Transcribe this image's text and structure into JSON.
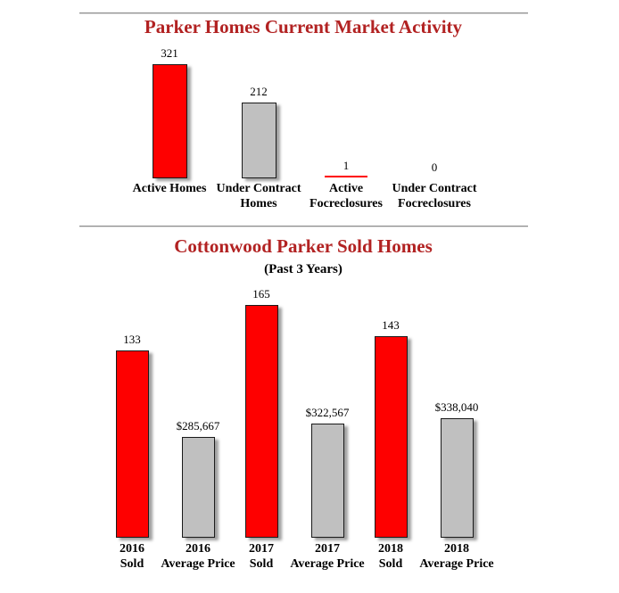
{
  "theme": {
    "background": "#ffffff",
    "title_color": "#b22222",
    "bar_red": "#fe0000",
    "bar_gray": "#c0c0c0",
    "bar_border": "#1a1a1a",
    "rule_color": "#8c8c8c",
    "text_color": "#000000"
  },
  "chart1": {
    "title": "Parker Homes Current Market Activity",
    "bars": [
      {
        "category": "Active Homes",
        "series": "count",
        "value": 321,
        "display": "321",
        "color": "red"
      },
      {
        "category": "Under Contract\nHomes",
        "series": "count",
        "value": 212,
        "display": "212",
        "color": "gray"
      },
      {
        "category": "Active\nFocreclosures",
        "series": "count",
        "value": 1,
        "display": "1",
        "color": "red"
      },
      {
        "category": "Under Contract\nFocreclosures",
        "series": "count",
        "value": 0,
        "display": "0",
        "color": "gray"
      }
    ]
  },
  "chart2": {
    "title": "Cottonwood Parker Sold Homes",
    "subtitle": "(Past 3 Years)",
    "bars": [
      {
        "category": "2016\nSold",
        "series": "count",
        "value": 133,
        "display": "133",
        "color": "red"
      },
      {
        "category": "2016\nAverage Price",
        "series": "price",
        "value": 285667,
        "display": "$285,667",
        "color": "gray"
      },
      {
        "category": "2017\nSold",
        "series": "count",
        "value": 165,
        "display": "165",
        "color": "red"
      },
      {
        "category": "2017\nAverage Price",
        "series": "price",
        "value": 322567,
        "display": "$322,567",
        "color": "gray"
      },
      {
        "category": "2018\nSold",
        "series": "count",
        "value": 143,
        "display": "143",
        "color": "red"
      },
      {
        "category": "2018\nAverage Price",
        "series": "price",
        "value": 338040,
        "display": "$338,040",
        "color": "gray"
      }
    ]
  },
  "chart_data": [
    {
      "type": "bar",
      "title": "Parker Homes Current Market Activity",
      "categories": [
        "Active Homes",
        "Under Contract Homes",
        "Active Focreclosures",
        "Under Contract Focreclosures"
      ],
      "values": [
        321,
        212,
        1,
        0
      ],
      "data_labels": [
        "321",
        "212",
        "1",
        "0"
      ],
      "bar_colors": [
        "#fe0000",
        "#c0c0c0",
        "#fe0000",
        "#c0c0c0"
      ],
      "xlabel": "",
      "ylabel": "",
      "ylim": [
        0,
        360
      ],
      "grid": false,
      "legend": false,
      "axes_hidden": true
    },
    {
      "type": "bar",
      "title": "Cottonwood Parker Sold Homes",
      "subtitle": "(Past 3 Years)",
      "categories": [
        "2016 Sold",
        "2016 Average Price",
        "2017 Sold",
        "2017 Average Price",
        "2018 Sold",
        "2018 Average Price"
      ],
      "values": [
        133,
        285667,
        165,
        322567,
        143,
        338040
      ],
      "data_labels": [
        "133",
        "$285,667",
        "165",
        "$322,567",
        "143",
        "$338,040"
      ],
      "bar_colors": [
        "#fe0000",
        "#c0c0c0",
        "#fe0000",
        "#c0c0c0",
        "#fe0000",
        "#c0c0c0"
      ],
      "series_note": "Sold counts and average prices are drawn on independent scales in the same plot",
      "xlabel": "",
      "ylabel": "",
      "grid": false,
      "legend": false,
      "axes_hidden": true
    }
  ]
}
